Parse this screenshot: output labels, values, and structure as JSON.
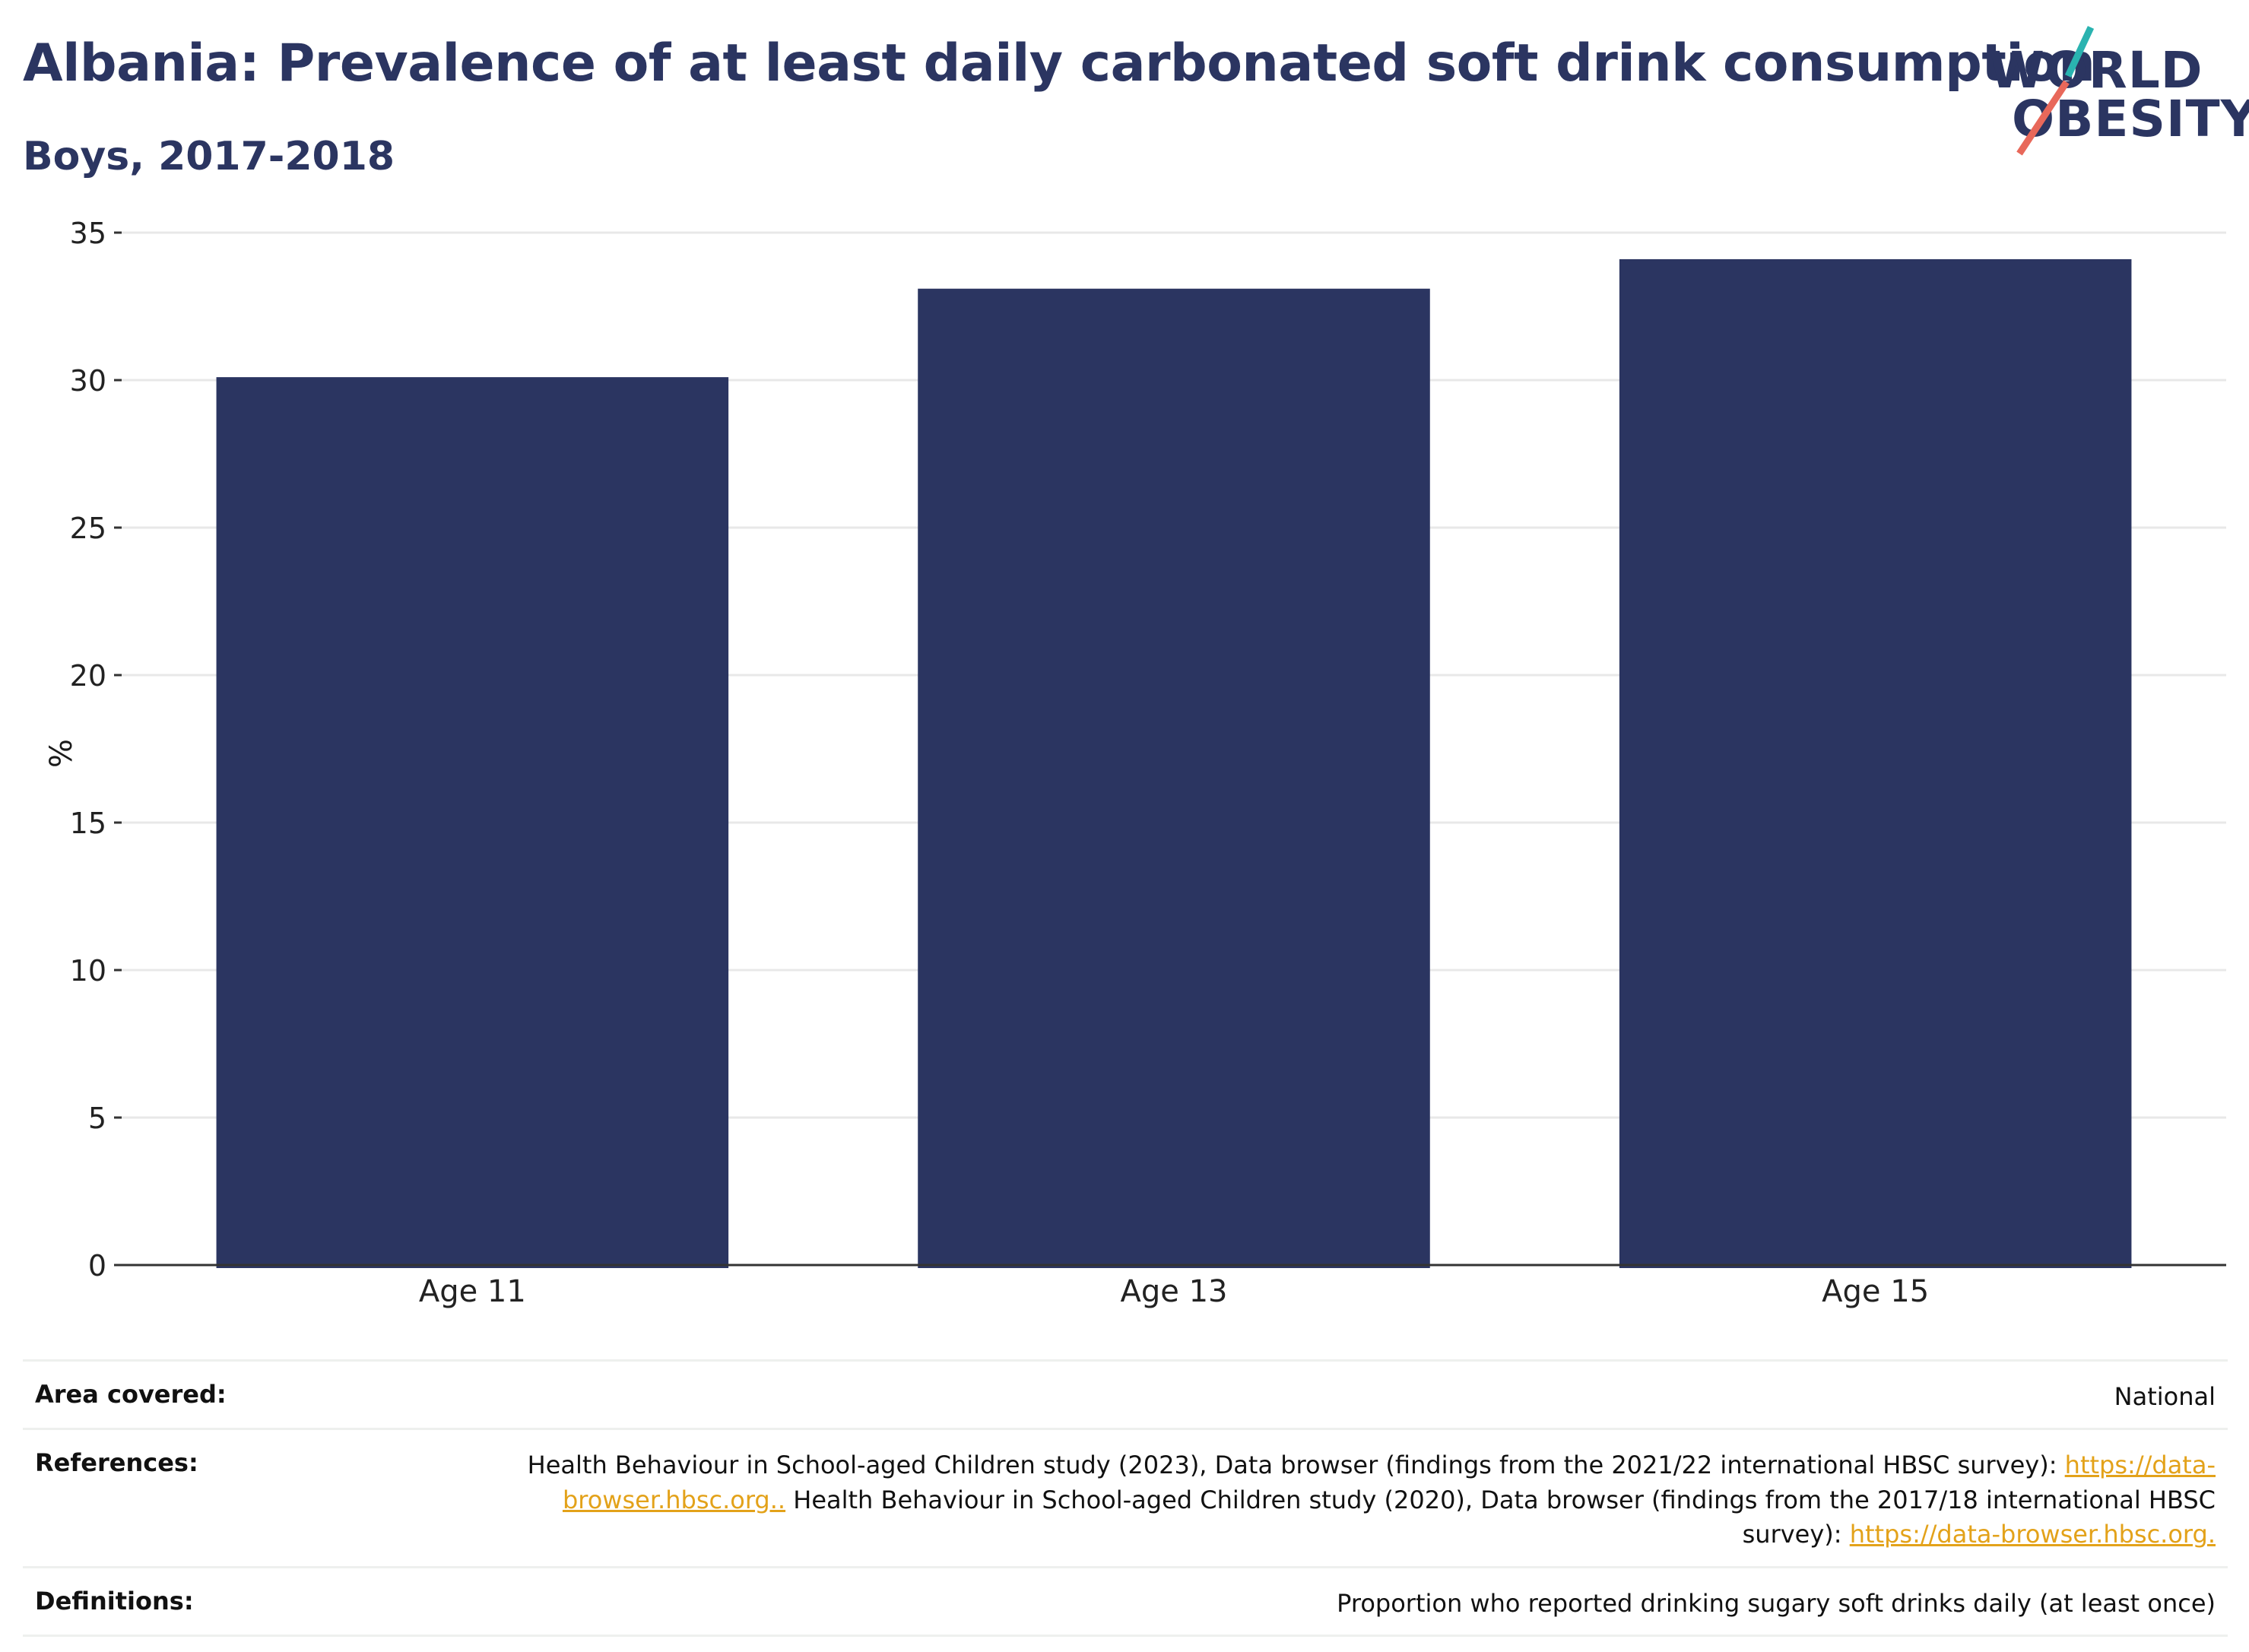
{
  "header": {
    "title": "Albania: Prevalence of at least daily carbonated soft drink consumption",
    "subtitle": "Boys, 2017-2018"
  },
  "logo": {
    "line1": "WORLD",
    "line2": "OBESITY",
    "accent_teal": "#2ab3b0",
    "accent_red": "#e8685a"
  },
  "chart_data": {
    "type": "bar",
    "categories": [
      "Age 11",
      "Age 13",
      "Age 15"
    ],
    "values": [
      30.1,
      33.1,
      34.1
    ],
    "title": "Albania: Prevalence of at least daily carbonated soft drink consumption",
    "subtitle": "Boys, 2017-2018",
    "xlabel": "",
    "ylabel": "%",
    "ylim": [
      0,
      35
    ],
    "yticks": [
      "0",
      "5",
      "10",
      "15",
      "20",
      "25",
      "30",
      "35"
    ],
    "grid": true,
    "bar_color": "#2b3561"
  },
  "info": {
    "area": {
      "label": "Area covered:",
      "value": "National"
    },
    "references": {
      "label": "References:",
      "text1": "Health Behaviour in School-aged Children study (2023), Data browser (findings from the 2021/22 international HBSC survey): ",
      "link1": "https://data-browser.hbsc.org..",
      "text2": " Health Behaviour in School-aged Children study (2020), Data browser (findings from the 2017/18 international HBSC survey): ",
      "link2": "https://data-browser.hbsc.org."
    },
    "definitions": {
      "label": "Definitions:",
      "value": "Proportion who reported drinking sugary soft drinks daily (at least once)"
    }
  }
}
